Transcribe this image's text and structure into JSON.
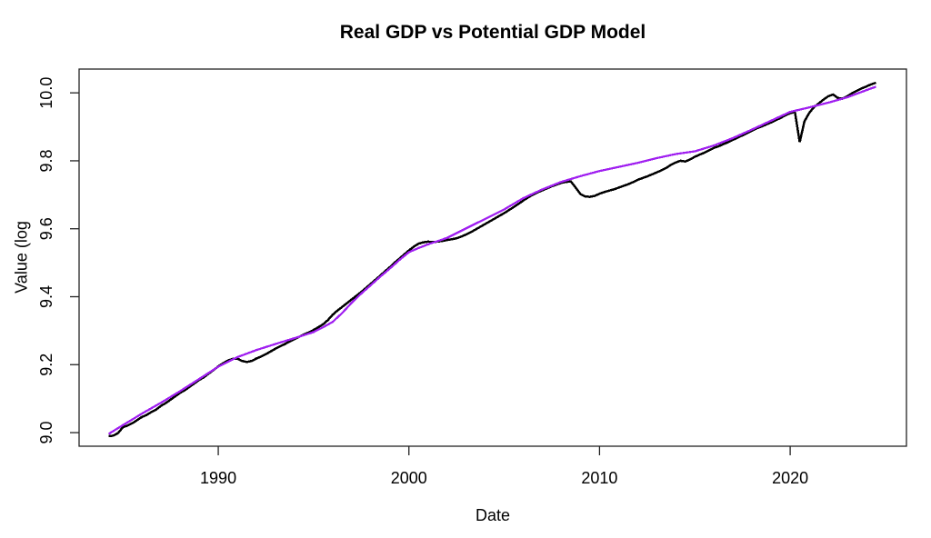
{
  "chart_data": {
    "type": "line",
    "title": "Real GDP vs Potential GDP Model",
    "xlabel": "Date",
    "ylabel": "Value (log",
    "xlim": [
      1982.7,
      2026.1
    ],
    "ylim": [
      8.96,
      10.07
    ],
    "xticks": [
      1990,
      2000,
      2010,
      2020
    ],
    "yticks": [
      9.0,
      9.2,
      9.4,
      9.6,
      9.8,
      10.0
    ],
    "ytick_labels": [
      "9.0",
      "9.2",
      "9.4",
      "9.6",
      "9.8",
      "10.0"
    ],
    "grid": false,
    "legend_position": "none",
    "background": "#ffffff",
    "box_color": "#222222",
    "series": [
      {
        "name": "Real GDP",
        "color": "#000000",
        "width": 2.5,
        "points": [
          [
            1984.25,
            8.99
          ],
          [
            1984.5,
            8.991
          ],
          [
            1984.75,
            8.999
          ],
          [
            1985,
            9.016
          ],
          [
            1985.25,
            9.021
          ],
          [
            1985.5,
            9.028
          ],
          [
            1985.75,
            9.037
          ],
          [
            1986,
            9.046
          ],
          [
            1986.25,
            9.052
          ],
          [
            1986.5,
            9.061
          ],
          [
            1986.75,
            9.068
          ],
          [
            1987,
            9.079
          ],
          [
            1987.25,
            9.087
          ],
          [
            1987.5,
            9.097
          ],
          [
            1987.75,
            9.107
          ],
          [
            1988,
            9.117
          ],
          [
            1988.25,
            9.125
          ],
          [
            1988.5,
            9.135
          ],
          [
            1988.75,
            9.145
          ],
          [
            1989,
            9.155
          ],
          [
            1989.25,
            9.163
          ],
          [
            1989.5,
            9.174
          ],
          [
            1989.75,
            9.184
          ],
          [
            1990,
            9.195
          ],
          [
            1990.25,
            9.204
          ],
          [
            1990.5,
            9.212
          ],
          [
            1990.75,
            9.217
          ],
          [
            1991,
            9.218
          ],
          [
            1991.25,
            9.211
          ],
          [
            1991.5,
            9.208
          ],
          [
            1991.75,
            9.211
          ],
          [
            1992,
            9.218
          ],
          [
            1992.25,
            9.224
          ],
          [
            1992.5,
            9.231
          ],
          [
            1992.75,
            9.239
          ],
          [
            1993,
            9.247
          ],
          [
            1993.25,
            9.254
          ],
          [
            1993.5,
            9.261
          ],
          [
            1993.75,
            9.268
          ],
          [
            1994,
            9.275
          ],
          [
            1994.25,
            9.282
          ],
          [
            1994.5,
            9.289
          ],
          [
            1994.75,
            9.295
          ],
          [
            1995,
            9.302
          ],
          [
            1995.25,
            9.31
          ],
          [
            1995.5,
            9.319
          ],
          [
            1995.75,
            9.331
          ],
          [
            1996,
            9.347
          ],
          [
            1996.25,
            9.359
          ],
          [
            1996.5,
            9.37
          ],
          [
            1996.75,
            9.381
          ],
          [
            1997,
            9.392
          ],
          [
            1997.25,
            9.403
          ],
          [
            1997.5,
            9.414
          ],
          [
            1997.75,
            9.426
          ],
          [
            1998,
            9.438
          ],
          [
            1998.25,
            9.45
          ],
          [
            1998.5,
            9.462
          ],
          [
            1998.75,
            9.475
          ],
          [
            1999,
            9.487
          ],
          [
            1999.25,
            9.5
          ],
          [
            1999.5,
            9.512
          ],
          [
            1999.75,
            9.524
          ],
          [
            2000,
            9.536
          ],
          [
            2000.25,
            9.547
          ],
          [
            2000.5,
            9.556
          ],
          [
            2000.75,
            9.56
          ],
          [
            2001,
            9.562
          ],
          [
            2001.25,
            9.561
          ],
          [
            2001.5,
            9.562
          ],
          [
            2001.75,
            9.564
          ],
          [
            2002,
            9.567
          ],
          [
            2002.25,
            9.569
          ],
          [
            2002.5,
            9.572
          ],
          [
            2002.75,
            9.577
          ],
          [
            2003,
            9.583
          ],
          [
            2003.25,
            9.59
          ],
          [
            2003.5,
            9.598
          ],
          [
            2003.75,
            9.606
          ],
          [
            2004,
            9.614
          ],
          [
            2004.25,
            9.622
          ],
          [
            2004.5,
            9.63
          ],
          [
            2004.75,
            9.638
          ],
          [
            2005,
            9.646
          ],
          [
            2005.25,
            9.655
          ],
          [
            2005.5,
            9.664
          ],
          [
            2005.75,
            9.673
          ],
          [
            2006,
            9.683
          ],
          [
            2006.25,
            9.692
          ],
          [
            2006.5,
            9.7
          ],
          [
            2006.75,
            9.707
          ],
          [
            2007,
            9.713
          ],
          [
            2007.25,
            9.719
          ],
          [
            2007.5,
            9.725
          ],
          [
            2007.75,
            9.73
          ],
          [
            2008,
            9.735
          ],
          [
            2008.25,
            9.738
          ],
          [
            2008.5,
            9.739
          ],
          [
            2008.75,
            9.721
          ],
          [
            2009,
            9.702
          ],
          [
            2009.25,
            9.695
          ],
          [
            2009.5,
            9.694
          ],
          [
            2009.75,
            9.697
          ],
          [
            2010,
            9.703
          ],
          [
            2010.25,
            9.708
          ],
          [
            2010.5,
            9.712
          ],
          [
            2010.75,
            9.716
          ],
          [
            2011,
            9.721
          ],
          [
            2011.25,
            9.726
          ],
          [
            2011.5,
            9.731
          ],
          [
            2011.75,
            9.737
          ],
          [
            2012,
            9.744
          ],
          [
            2012.25,
            9.749
          ],
          [
            2012.5,
            9.754
          ],
          [
            2012.75,
            9.76
          ],
          [
            2013,
            9.766
          ],
          [
            2013.25,
            9.772
          ],
          [
            2013.5,
            9.779
          ],
          [
            2013.75,
            9.788
          ],
          [
            2014,
            9.795
          ],
          [
            2014.25,
            9.8
          ],
          [
            2014.5,
            9.798
          ],
          [
            2014.75,
            9.804
          ],
          [
            2015,
            9.812
          ],
          [
            2015.25,
            9.818
          ],
          [
            2015.5,
            9.824
          ],
          [
            2015.75,
            9.831
          ],
          [
            2016,
            9.838
          ],
          [
            2016.25,
            9.843
          ],
          [
            2016.5,
            9.849
          ],
          [
            2016.75,
            9.855
          ],
          [
            2017,
            9.862
          ],
          [
            2017.25,
            9.868
          ],
          [
            2017.5,
            9.875
          ],
          [
            2017.75,
            9.882
          ],
          [
            2018,
            9.889
          ],
          [
            2018.25,
            9.896
          ],
          [
            2018.5,
            9.901
          ],
          [
            2018.75,
            9.907
          ],
          [
            2019,
            9.913
          ],
          [
            2019.25,
            9.92
          ],
          [
            2019.5,
            9.926
          ],
          [
            2019.75,
            9.934
          ],
          [
            2020,
            9.94
          ],
          [
            2020.25,
            9.944
          ],
          [
            2020.5,
            9.855
          ],
          [
            2020.75,
            9.916
          ],
          [
            2021,
            9.941
          ],
          [
            2021.25,
            9.958
          ],
          [
            2021.5,
            9.969
          ],
          [
            2021.75,
            9.98
          ],
          [
            2022,
            9.99
          ],
          [
            2022.25,
            9.995
          ],
          [
            2022.5,
            9.985
          ],
          [
            2022.75,
            9.983
          ],
          [
            2023,
            9.99
          ],
          [
            2023.25,
            9.999
          ],
          [
            2023.5,
            10.006
          ],
          [
            2023.75,
            10.013
          ],
          [
            2024,
            10.019
          ],
          [
            2024.25,
            10.025
          ],
          [
            2024.5,
            10.03
          ]
        ]
      },
      {
        "name": "Potential GDP Model",
        "color": "#A020F0",
        "width": 2.3,
        "points": [
          [
            1984.25,
            8.996
          ],
          [
            1985,
            9.022
          ],
          [
            1986,
            9.056
          ],
          [
            1987,
            9.088
          ],
          [
            1988,
            9.122
          ],
          [
            1989,
            9.158
          ],
          [
            1990,
            9.194
          ],
          [
            1991,
            9.222
          ],
          [
            1992,
            9.243
          ],
          [
            1993,
            9.261
          ],
          [
            1994,
            9.278
          ],
          [
            1995,
            9.296
          ],
          [
            1995.5,
            9.31
          ],
          [
            1996,
            9.326
          ],
          [
            1996.5,
            9.352
          ],
          [
            1997,
            9.382
          ],
          [
            1997.5,
            9.409
          ],
          [
            1998,
            9.434
          ],
          [
            1998.5,
            9.459
          ],
          [
            1999,
            9.483
          ],
          [
            1999.5,
            9.508
          ],
          [
            2000,
            9.531
          ],
          [
            2000.5,
            9.543
          ],
          [
            2001,
            9.554
          ],
          [
            2002,
            9.573
          ],
          [
            2003,
            9.601
          ],
          [
            2004,
            9.629
          ],
          [
            2005,
            9.657
          ],
          [
            2006,
            9.69
          ],
          [
            2007,
            9.716
          ],
          [
            2008,
            9.738
          ],
          [
            2009,
            9.755
          ],
          [
            2010,
            9.77
          ],
          [
            2011,
            9.782
          ],
          [
            2012,
            9.794
          ],
          [
            2013,
            9.808
          ],
          [
            2014,
            9.82
          ],
          [
            2015,
            9.828
          ],
          [
            2016,
            9.845
          ],
          [
            2017,
            9.867
          ],
          [
            2018,
            9.892
          ],
          [
            2019,
            9.918
          ],
          [
            2020,
            9.944
          ],
          [
            2021,
            9.957
          ],
          [
            2022,
            9.971
          ],
          [
            2023,
            9.987
          ],
          [
            2024,
            10.008
          ],
          [
            2024.5,
            10.018
          ]
        ]
      }
    ]
  }
}
